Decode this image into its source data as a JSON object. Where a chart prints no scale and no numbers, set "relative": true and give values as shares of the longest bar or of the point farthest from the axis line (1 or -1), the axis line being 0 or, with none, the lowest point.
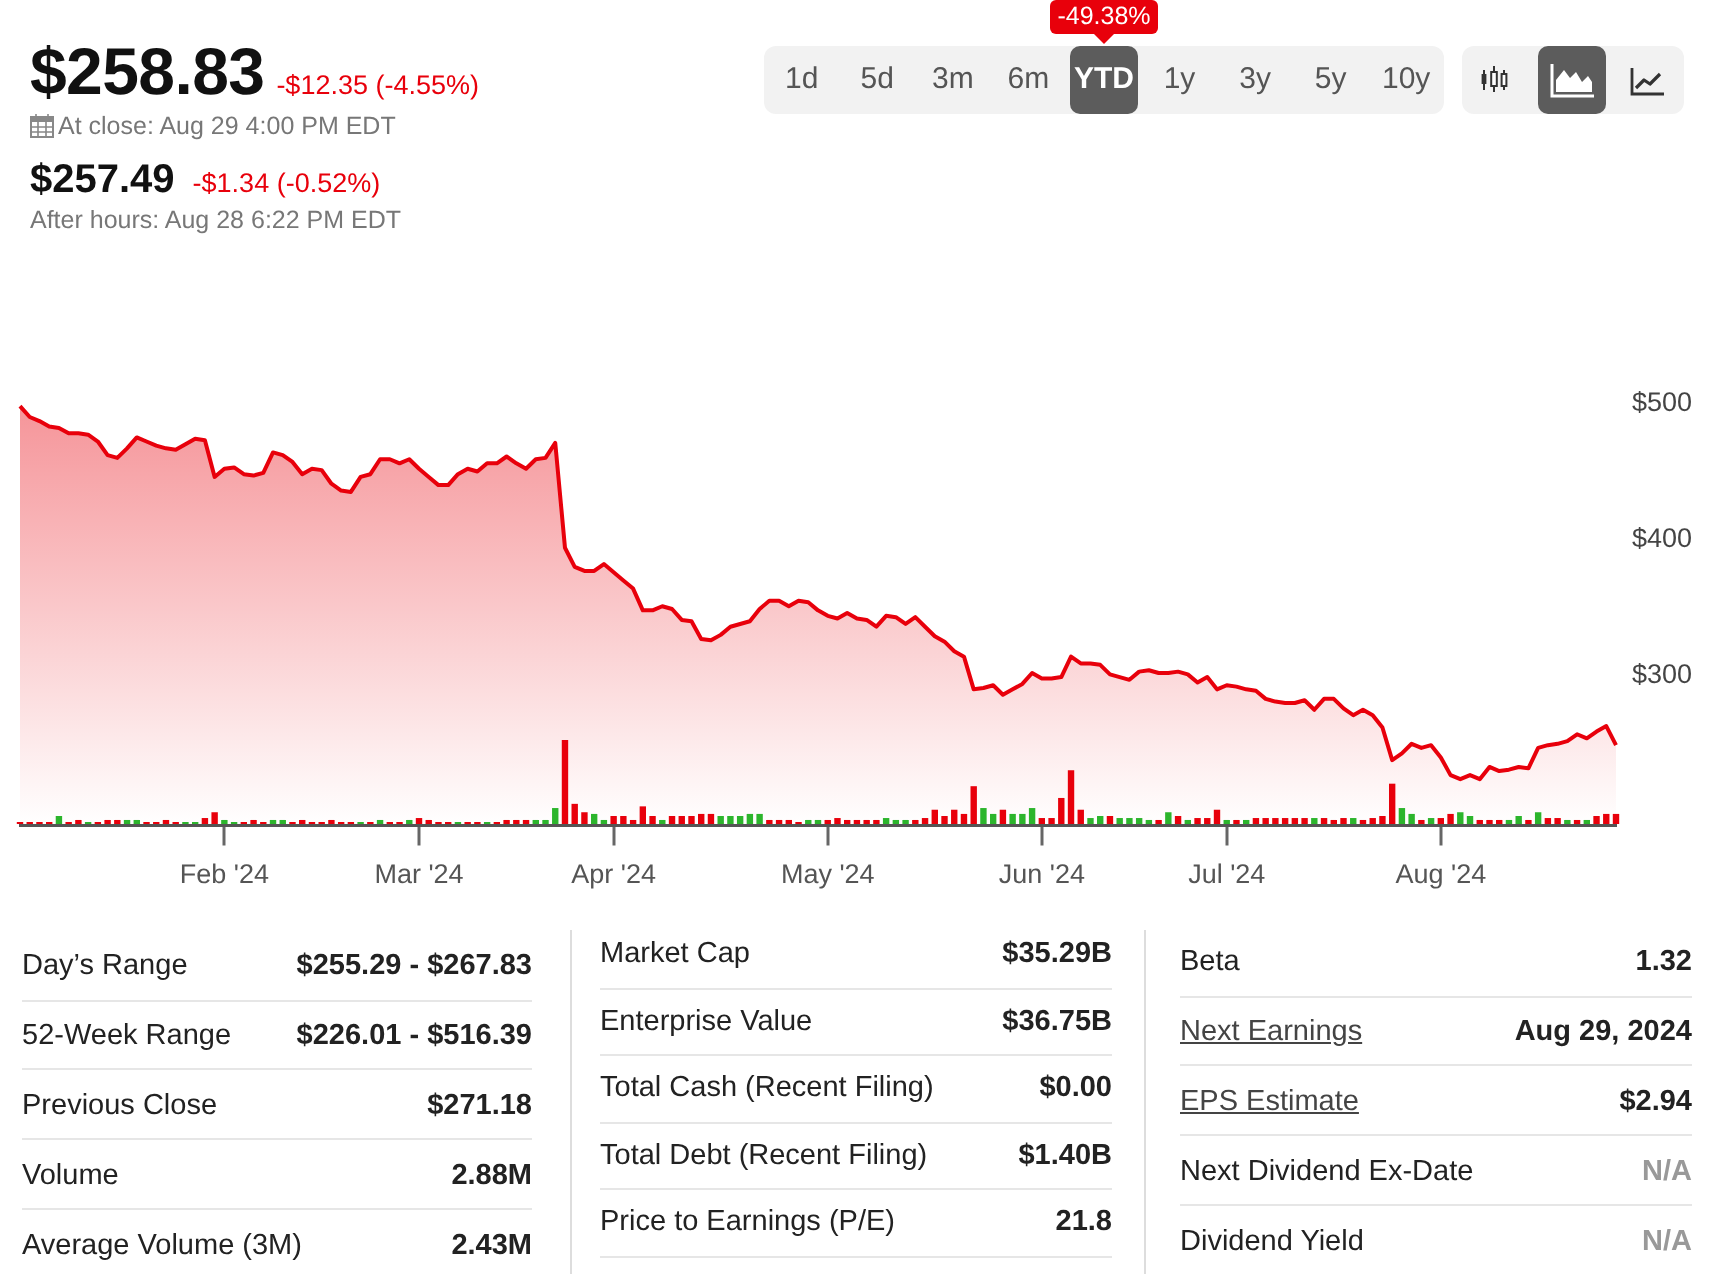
{
  "chart_data": [
    {
      "type": "other",
      "title": "$258.83",
      "annotations": [
        "-$12.35 (-4.55%)",
        "At close: Aug 29 4:00 PM EDT",
        "$257.49",
        "-$1.34 (-0.52%)",
        "After hours: Aug 28 6:22 PM EDT"
      ]
    },
    {
      "type": "other",
      "categories": [
        "1d",
        "5d",
        "3m",
        "6m",
        "YTD",
        "1y",
        "3y",
        "5y",
        "10y"
      ],
      "annotations": [
        "-49.38%"
      ]
    },
    {
      "type": "area",
      "categories": [
        null,
        null,
        null,
        null,
        null,
        null,
        null,
        null,
        null,
        null,
        null,
        null,
        null,
        null,
        null,
        null,
        null,
        null,
        null,
        null,
        null,
        "Feb '24",
        null,
        null,
        null,
        null,
        null,
        null,
        null,
        null,
        null,
        null,
        null,
        null,
        null,
        null,
        null,
        null,
        null,
        null,
        null,
        "Mar '24",
        null,
        null,
        null,
        null,
        null,
        null,
        null,
        null,
        null,
        null,
        null,
        null,
        null,
        null,
        null,
        null,
        null,
        null,
        null,
        "Apr '24",
        null,
        null,
        null,
        null,
        null,
        null,
        null,
        null,
        null,
        null,
        null,
        null,
        null,
        null,
        null,
        null,
        null,
        null,
        null,
        null,
        null,
        "May '24",
        null,
        null,
        null,
        null,
        null,
        null,
        null,
        null,
        null,
        null,
        null,
        null,
        null,
        null,
        null,
        null,
        null,
        null,
        null,
        null,
        null,
        "Jun '24",
        null,
        null,
        null,
        null,
        null,
        null,
        null,
        null,
        null,
        null,
        null,
        null,
        null,
        null,
        null,
        null,
        null,
        null,
        "Jul '24",
        null,
        null,
        null,
        null,
        null,
        null,
        null,
        null,
        null,
        null,
        null,
        null,
        null,
        null,
        null,
        null,
        null,
        null,
        null,
        null,
        null,
        "Aug '24",
        null,
        null,
        null,
        null,
        null,
        null,
        null,
        null,
        null,
        null,
        null,
        null,
        null,
        null,
        null,
        null,
        null,
        null
      ],
      "series": [
        {
          "color": "#e8000b",
          "values": [
            498,
            490,
            487,
            483,
            482,
            478,
            478,
            477,
            472,
            462,
            460,
            467,
            475,
            472,
            469,
            467,
            466,
            470,
            474,
            473,
            446,
            452,
            453,
            448,
            447,
            449,
            464,
            462,
            457,
            448,
            452,
            451,
            441,
            436,
            435,
            446,
            448,
            459,
            459,
            456,
            459,
            452,
            446,
            440,
            440,
            448,
            452,
            450,
            456,
            456,
            461,
            456,
            452,
            459,
            460,
            471,
            394,
            380,
            377,
            377,
            382,
            376,
            370,
            364,
            348,
            348,
            351,
            349,
            341,
            340,
            327,
            326,
            330,
            336,
            338,
            340,
            349,
            355,
            355,
            351,
            355,
            354,
            348,
            344,
            342,
            346,
            342,
            341,
            336,
            344,
            343,
            338,
            343,
            336,
            329,
            325,
            318,
            314,
            290,
            291,
            293,
            286,
            290,
            294,
            302,
            298,
            298,
            299,
            314,
            309,
            309,
            308,
            301,
            299,
            297,
            303,
            304,
            302,
            302,
            303,
            301,
            295,
            299,
            290,
            293,
            292,
            290,
            289,
            283,
            281,
            280,
            280,
            282,
            275,
            283,
            283,
            276,
            271,
            275,
            271,
            262,
            238,
            243,
            250,
            247,
            249,
            240,
            227,
            224,
            227,
            224,
            233,
            230,
            231,
            233,
            232,
            247,
            249,
            250,
            252,
            257,
            254,
            259,
            263,
            249
          ]
        }
      ],
      "ylim": [
        190,
        500
      ],
      "yticks": [
        {
          "value": 300,
          "label": "$300"
        },
        {
          "value": 400,
          "label": "$400"
        },
        {
          "value": 500,
          "label": "$500"
        }
      ]
    },
    {
      "type": "bar",
      "relative": true,
      "categories": [
        null,
        null,
        null,
        null,
        null,
        null,
        null,
        null,
        null,
        null,
        null,
        null,
        null,
        null,
        null,
        null,
        null,
        null,
        null,
        null,
        null,
        null,
        null,
        null,
        null,
        null,
        null,
        null,
        null,
        null,
        null,
        null,
        null,
        null,
        null,
        null,
        null,
        null,
        null,
        null,
        null,
        null,
        null,
        null,
        null,
        null,
        null,
        null,
        null,
        null,
        null,
        null,
        null,
        null,
        null,
        null,
        null,
        null,
        null,
        null,
        null,
        null,
        null,
        null,
        null,
        null,
        null,
        null,
        null,
        null,
        null,
        null,
        null,
        null,
        null,
        null,
        null,
        null,
        null,
        null,
        null,
        null,
        null,
        null,
        null,
        null,
        null,
        null,
        null,
        null,
        null,
        null,
        null,
        null,
        null,
        null,
        null,
        null,
        null,
        null,
        null,
        null,
        null,
        null,
        null,
        null,
        null,
        null,
        null,
        null,
        null,
        null,
        null,
        null,
        null,
        null,
        null,
        null,
        null,
        null,
        null,
        null,
        null,
        null,
        null,
        null,
        null,
        null,
        null,
        null,
        null,
        null,
        null,
        null,
        null,
        null,
        null,
        null,
        null,
        null,
        null,
        null,
        null,
        null,
        null,
        null,
        null,
        null,
        null,
        null,
        null,
        null,
        null,
        null,
        null,
        null,
        null,
        null,
        null,
        null,
        null,
        null,
        null,
        null,
        null
      ],
      "values": [
        0.024,
        0.024,
        0.024,
        0.024,
        0.095,
        0.024,
        0.048,
        0.024,
        0.024,
        0.048,
        0.048,
        0.048,
        0.048,
        0.024,
        0.024,
        0.048,
        0.024,
        0.024,
        0.024,
        0.071,
        0.14,
        0.048,
        0.024,
        0.024,
        0.048,
        0.024,
        0.048,
        0.048,
        0.024,
        0.048,
        0.024,
        0.024,
        0.048,
        0.024,
        0.024,
        0.024,
        0.024,
        0.048,
        0.024,
        0.024,
        0.048,
        0.071,
        0.048,
        0.024,
        0.024,
        0.024,
        0.024,
        0.024,
        0.024,
        0.024,
        0.048,
        0.048,
        0.048,
        0.048,
        0.048,
        0.19,
        1,
        0.24,
        0.14,
        0.12,
        0.048,
        0.095,
        0.095,
        0.048,
        0.21,
        0.095,
        0.048,
        0.095,
        0.095,
        0.095,
        0.12,
        0.12,
        0.095,
        0.095,
        0.095,
        0.12,
        0.12,
        0.048,
        0.048,
        0.048,
        0.024,
        0.048,
        0.048,
        0.048,
        0.071,
        0.048,
        0.048,
        0.048,
        0.048,
        0.071,
        0.048,
        0.048,
        0.048,
        0.071,
        0.17,
        0.095,
        0.17,
        0.12,
        0.45,
        0.19,
        0.12,
        0.17,
        0.12,
        0.12,
        0.19,
        0.071,
        0.071,
        0.31,
        0.64,
        0.17,
        0.071,
        0.095,
        0.095,
        0.071,
        0.071,
        0.071,
        0.048,
        0.048,
        0.14,
        0.095,
        0.048,
        0.071,
        0.071,
        0.17,
        0.048,
        0.048,
        0.048,
        0.071,
        0.071,
        0.071,
        0.071,
        0.071,
        0.071,
        0.071,
        0.071,
        0.048,
        0.071,
        0.071,
        0.048,
        0.071,
        0.095,
        0.48,
        0.19,
        0.12,
        0.048,
        0.071,
        0.071,
        0.12,
        0.14,
        0.095,
        0.048,
        0.048,
        0.048,
        0.048,
        0.095,
        0.048,
        0.14,
        0.071,
        0.071,
        0.048,
        0.048,
        0.048,
        0.095,
        0.12,
        0.12
      ],
      "colors": [
        "#e8000b",
        "#e8000b",
        "#e8000b",
        "#e8000b",
        "#2cb52c",
        "#e8000b",
        "#e8000b",
        "#2cb52c",
        "#e8000b",
        "#e8000b",
        "#e8000b",
        "#2cb52c",
        "#2cb52c",
        "#e8000b",
        "#e8000b",
        "#e8000b",
        "#e8000b",
        "#2cb52c",
        "#2cb52c",
        "#e8000b",
        "#e8000b",
        "#2cb52c",
        "#2cb52c",
        "#e8000b",
        "#e8000b",
        "#e8000b",
        "#2cb52c",
        "#2cb52c",
        "#e8000b",
        "#e8000b",
        "#e8000b",
        "#e8000b",
        "#e8000b",
        "#e8000b",
        "#e8000b",
        "#2cb52c",
        "#e8000b",
        "#2cb52c",
        "#e8000b",
        "#e8000b",
        "#2cb52c",
        "#e8000b",
        "#e8000b",
        "#e8000b",
        "#e8000b",
        "#2cb52c",
        "#e8000b",
        "#e8000b",
        "#2cb52c",
        "#e8000b",
        "#e8000b",
        "#e8000b",
        "#e8000b",
        "#2cb52c",
        "#2cb52c",
        "#2cb52c",
        "#e8000b",
        "#e8000b",
        "#e8000b",
        "#2cb52c",
        "#2cb52c",
        "#e8000b",
        "#e8000b",
        "#e8000b",
        "#e8000b",
        "#e8000b",
        "#2cb52c",
        "#e8000b",
        "#e8000b",
        "#e8000b",
        "#e8000b",
        "#e8000b",
        "#2cb52c",
        "#2cb52c",
        "#2cb52c",
        "#2cb52c",
        "#2cb52c",
        "#e8000b",
        "#e8000b",
        "#e8000b",
        "#e8000b",
        "#2cb52c",
        "#2cb52c",
        "#e8000b",
        "#e8000b",
        "#e8000b",
        "#e8000b",
        "#e8000b",
        "#e8000b",
        "#2cb52c",
        "#2cb52c",
        "#2cb52c",
        "#e8000b",
        "#e8000b",
        "#e8000b",
        "#e8000b",
        "#e8000b",
        "#e8000b",
        "#e8000b",
        "#2cb52c",
        "#2cb52c",
        "#e8000b",
        "#2cb52c",
        "#2cb52c",
        "#2cb52c",
        "#e8000b",
        "#e8000b",
        "#e8000b",
        "#e8000b",
        "#e8000b",
        "#2cb52c",
        "#2cb52c",
        "#e8000b",
        "#2cb52c",
        "#2cb52c",
        "#2cb52c",
        "#2cb52c",
        "#e8000b",
        "#2cb52c",
        "#e8000b",
        "#2cb52c",
        "#e8000b",
        "#e8000b",
        "#e8000b",
        "#2cb52c",
        "#e8000b",
        "#2cb52c",
        "#e8000b",
        "#e8000b",
        "#e8000b",
        "#e8000b",
        "#e8000b",
        "#e8000b",
        "#2cb52c",
        "#e8000b",
        "#e8000b",
        "#e8000b",
        "#2cb52c",
        "#e8000b",
        "#e8000b",
        "#e8000b",
        "#e8000b",
        "#2cb52c",
        "#2cb52c",
        "#e8000b",
        "#2cb52c",
        "#e8000b",
        "#e8000b",
        "#2cb52c",
        "#2cb52c",
        "#e8000b",
        "#e8000b",
        "#e8000b",
        "#2cb52c",
        "#2cb52c",
        "#e8000b",
        "#2cb52c",
        "#e8000b",
        "#e8000b",
        "#2cb52c",
        "#e8000b",
        "#2cb52c",
        "#e8000b",
        "#e8000b",
        "#e8000b"
      ]
    },
    {
      "type": "other",
      "annotations": [
        "Day’s Range",
        "$255.29 - $267.83",
        "52-Week Range",
        "$226.01 - $516.39",
        "Previous Close",
        "$271.18",
        "Volume",
        "2.88M",
        "Average Volume (3M)",
        "2.43M",
        "Market Cap",
        "$35.29B",
        "Enterprise Value",
        "$36.75B",
        "Total Cash (Recent Filing)",
        "$0.00",
        "Total Debt (Recent Filing)",
        "$1.40B",
        "Price to Earnings (P/E)",
        "21.8",
        "Beta",
        "1.32",
        "Next Earnings",
        "Aug 29, 2024",
        "EPS Estimate",
        "$2.94",
        "Next Dividend Ex-Date",
        "N/A",
        "Dividend Yield",
        "N/A"
      ]
    }
  ]
}
